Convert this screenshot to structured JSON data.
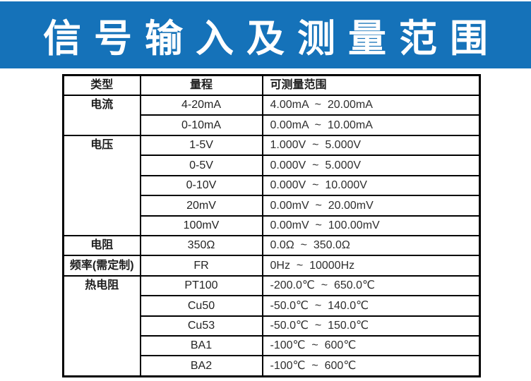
{
  "banner": {
    "title": "信号输入及测量范围",
    "bg_color": "#1572b9",
    "text_color": "#ffffff"
  },
  "table": {
    "border_color": "#000000",
    "headers": [
      "类型",
      "量程",
      "可测量范围"
    ],
    "groups": [
      {
        "type": "电流",
        "rows": [
          {
            "range": "4-20mA",
            "measurable": "4.00mA  ~  20.00mA"
          },
          {
            "range": "0-10mA",
            "measurable": "0.00mA  ~  10.00mA"
          }
        ]
      },
      {
        "type": "电压",
        "rows": [
          {
            "range": "1-5V",
            "measurable": "1.000V  ~  5.000V"
          },
          {
            "range": "0-5V",
            "measurable": "0.000V  ~  5.000V"
          },
          {
            "range": "0-10V",
            "measurable": "0.000V  ~  10.000V"
          },
          {
            "range": "20mV",
            "measurable": "0.00mV  ~  20.00mV"
          },
          {
            "range": "100mV",
            "measurable": "0.00mV  ~  100.00mV"
          }
        ]
      },
      {
        "type": "电阻",
        "rows": [
          {
            "range": "350Ω",
            "measurable": "0.0Ω  ~  350.0Ω"
          }
        ]
      },
      {
        "type": "频率(需定制)",
        "rows": [
          {
            "range": "FR",
            "measurable": "0Hz  ~  10000Hz"
          }
        ]
      },
      {
        "type": "热电阻",
        "rows": [
          {
            "range": "PT100",
            "measurable": "-200.0℃  ~  650.0℃"
          },
          {
            "range": "Cu50",
            "measurable": "-50.0℃  ~  140.0℃"
          },
          {
            "range": "Cu53",
            "measurable": "-50.0℃  ~  150.0℃"
          },
          {
            "range": "BA1",
            "measurable": "-100℃  ~  600℃"
          },
          {
            "range": "BA2",
            "measurable": "-100℃  ~  600℃"
          }
        ]
      }
    ]
  }
}
